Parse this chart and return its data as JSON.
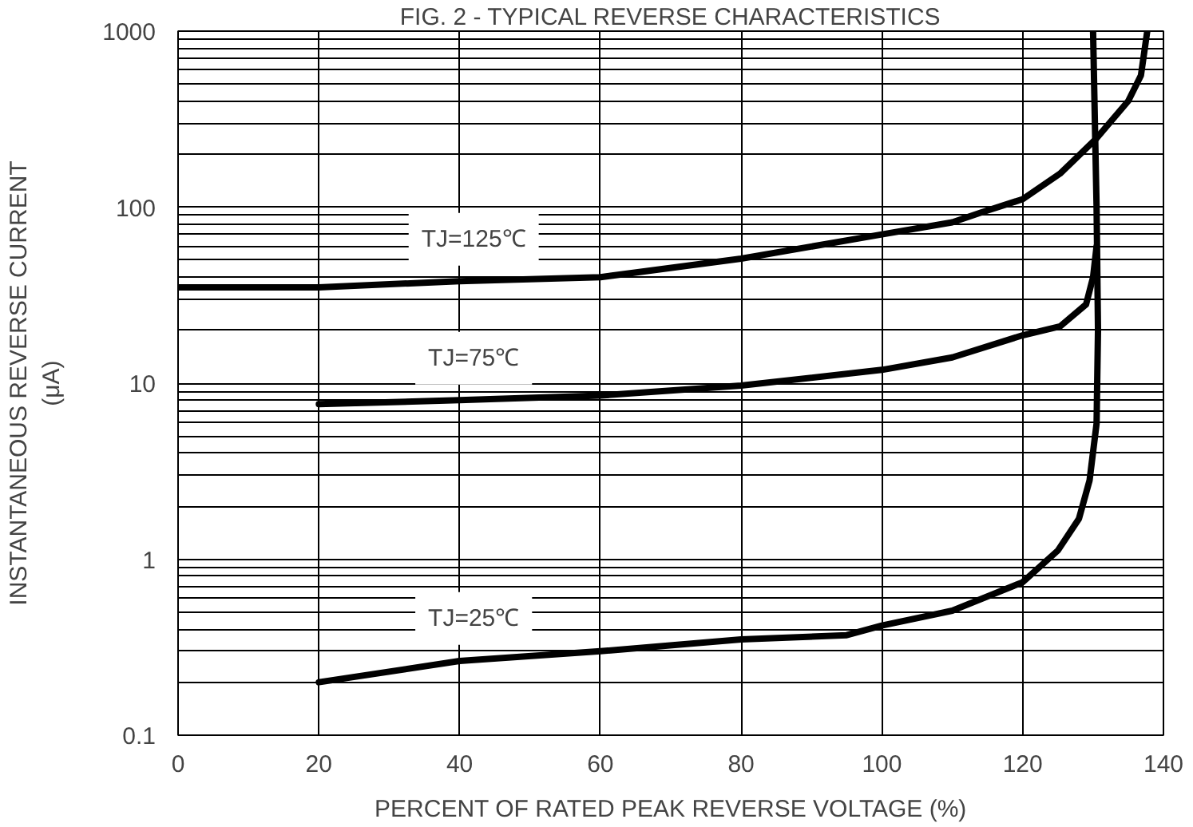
{
  "chart_data": {
    "type": "line",
    "title": "FIG. 2 - TYPICAL REVERSE CHARACTERISTICS",
    "xlabel": "PERCENT OF RATED PEAK REVERSE VOLTAGE (%)",
    "ylabel": "INSTANTANEOUS REVERSE CURRENT\n(μA)",
    "xlim": [
      0,
      140
    ],
    "xticks": [
      0,
      20,
      40,
      60,
      80,
      100,
      120,
      140
    ],
    "ylim": [
      0.1,
      1000
    ],
    "yticks": [
      0.1,
      1,
      10,
      100,
      1000
    ],
    "log": "y",
    "grid": true,
    "marker": "none",
    "line_style": "solid",
    "series": [
      {
        "name": "TJ=125℃",
        "color": "#000000",
        "x": [
          0,
          20,
          40,
          60,
          80,
          100,
          110,
          114,
          120,
          125.3,
          130.4,
          135,
          136.8,
          137.7
        ],
        "values": [
          35,
          35,
          38,
          40,
          51,
          70,
          82,
          93,
          111,
          155,
          244,
          401,
          560,
          1000
        ]
      },
      {
        "name": "TJ=75℃",
        "color": "#000000",
        "x": [
          20,
          40,
          60,
          80,
          100,
          110,
          120,
          125.3,
          129,
          130,
          130.5
        ],
        "values": [
          7.6,
          8.0,
          8.5,
          9.7,
          11.9,
          14,
          18.7,
          21,
          28,
          40,
          60
        ]
      },
      {
        "name": "TJ=25℃",
        "color": "#000000",
        "x": [
          20,
          40,
          60,
          80,
          95,
          100,
          110,
          120,
          125,
          128,
          129.5,
          130.5,
          130.7,
          130.5,
          130
        ],
        "values": [
          0.2,
          0.264,
          0.3,
          0.35,
          0.37,
          0.42,
          0.51,
          0.74,
          1.12,
          1.7,
          2.8,
          5.9,
          20,
          100,
          1000
        ]
      }
    ]
  }
}
